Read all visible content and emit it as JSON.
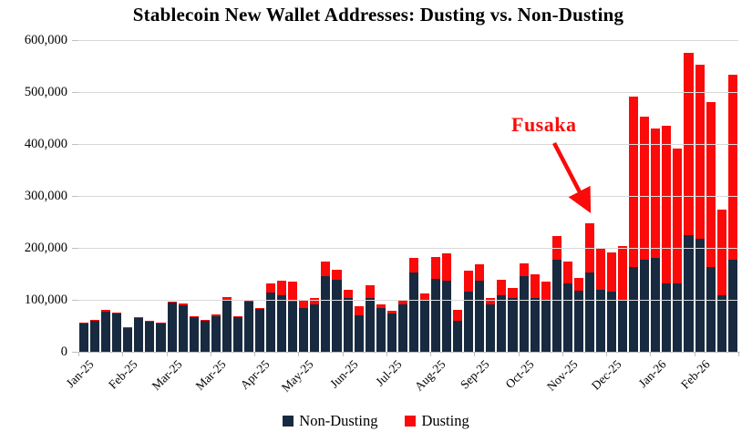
{
  "title": "Stablecoin New Wallet Addresses: Dusting vs. Non-Dusting",
  "annotation": {
    "label": "Fusaka"
  },
  "colors": {
    "non_dusting": "#182a40",
    "dusting": "#fb0a0a",
    "gridline": "#d9d9d9",
    "axis": "#bfbfbf",
    "annotation": "#fb0a0a"
  },
  "legend": [
    {
      "label": "Non-Dusting",
      "color": "#182a40"
    },
    {
      "label": "Dusting",
      "color": "#fb0a0a"
    }
  ],
  "y_axis": {
    "tick_labels": [
      "600,000",
      "500,000",
      "400,000",
      "300,000",
      "200,000",
      "100,000",
      "0"
    ],
    "min": 0,
    "max": 600000
  },
  "x_axis": {
    "tick_labels": [
      "Jan-25",
      "Feb-25",
      "Mar-25",
      "Mar-25",
      "Apr-25",
      "May-25",
      "Jun-25",
      "Jul-25",
      "Aug-25",
      "Sep-25",
      "Oct-25",
      "Nov-25",
      "Dec-25",
      "Jan-26",
      "Feb-26"
    ],
    "label_every_n_bars": 4
  },
  "chart_data": {
    "type": "bar",
    "stacked": true,
    "title": "Stablecoin New Wallet Addresses: Dusting vs. Non-Dusting",
    "x_description": "60 weekly periods, Jan 2025 - Feb 2026, month label shown every 4th bar",
    "x_tick_labels": [
      "Jan-25",
      "Feb-25",
      "Mar-25",
      "Mar-25",
      "Apr-25",
      "May-25",
      "Jun-25",
      "Jul-25",
      "Aug-25",
      "Sep-25",
      "Oct-25",
      "Nov-25",
      "Dec-25",
      "Jan-26",
      "Feb-26"
    ],
    "ylim": [
      0,
      600000
    ],
    "grid": true,
    "legend_position": "bottom",
    "series": [
      {
        "name": "Non-Dusting",
        "color": "#182a40",
        "values": [
          54000,
          59000,
          77000,
          73000,
          46500,
          65000,
          58000,
          55000,
          94000,
          90000,
          66000,
          59000,
          68000,
          98000,
          66000,
          96000,
          82000,
          114000,
          108000,
          97000,
          84000,
          91000,
          145000,
          139000,
          103000,
          70000,
          103000,
          84000,
          74000,
          92000,
          153000,
          98000,
          140000,
          136000,
          60000,
          116000,
          136000,
          91000,
          109000,
          103000,
          145000,
          104000,
          99000,
          177000,
          131000,
          117000,
          152000,
          120000,
          116000,
          98000,
          163000,
          177000,
          181000,
          131000,
          131000,
          224000,
          218000,
          163000,
          109000,
          177000
        ]
      },
      {
        "name": "Dusting",
        "color": "#fb0a0a",
        "values": [
          2000,
          2000,
          3000,
          2000,
          1500,
          2000,
          2000,
          2000,
          2000,
          3000,
          2000,
          2000,
          4000,
          8000,
          2000,
          4000,
          2000,
          18000,
          29000,
          38000,
          16000,
          12000,
          28000,
          19000,
          17000,
          17000,
          25000,
          7000,
          5000,
          8000,
          27000,
          15000,
          43000,
          53000,
          21000,
          41000,
          32000,
          13000,
          29000,
          20000,
          26000,
          46000,
          37000,
          45000,
          42000,
          25000,
          95000,
          78000,
          75000,
          105000,
          329000,
          275000,
          248000,
          305000,
          261000,
          351000,
          335000,
          317000,
          165000,
          356000
        ]
      }
    ],
    "annotations": [
      {
        "text": "Fusaka",
        "color": "#fb0a0a",
        "points_to_bar_index": 47
      }
    ]
  }
}
